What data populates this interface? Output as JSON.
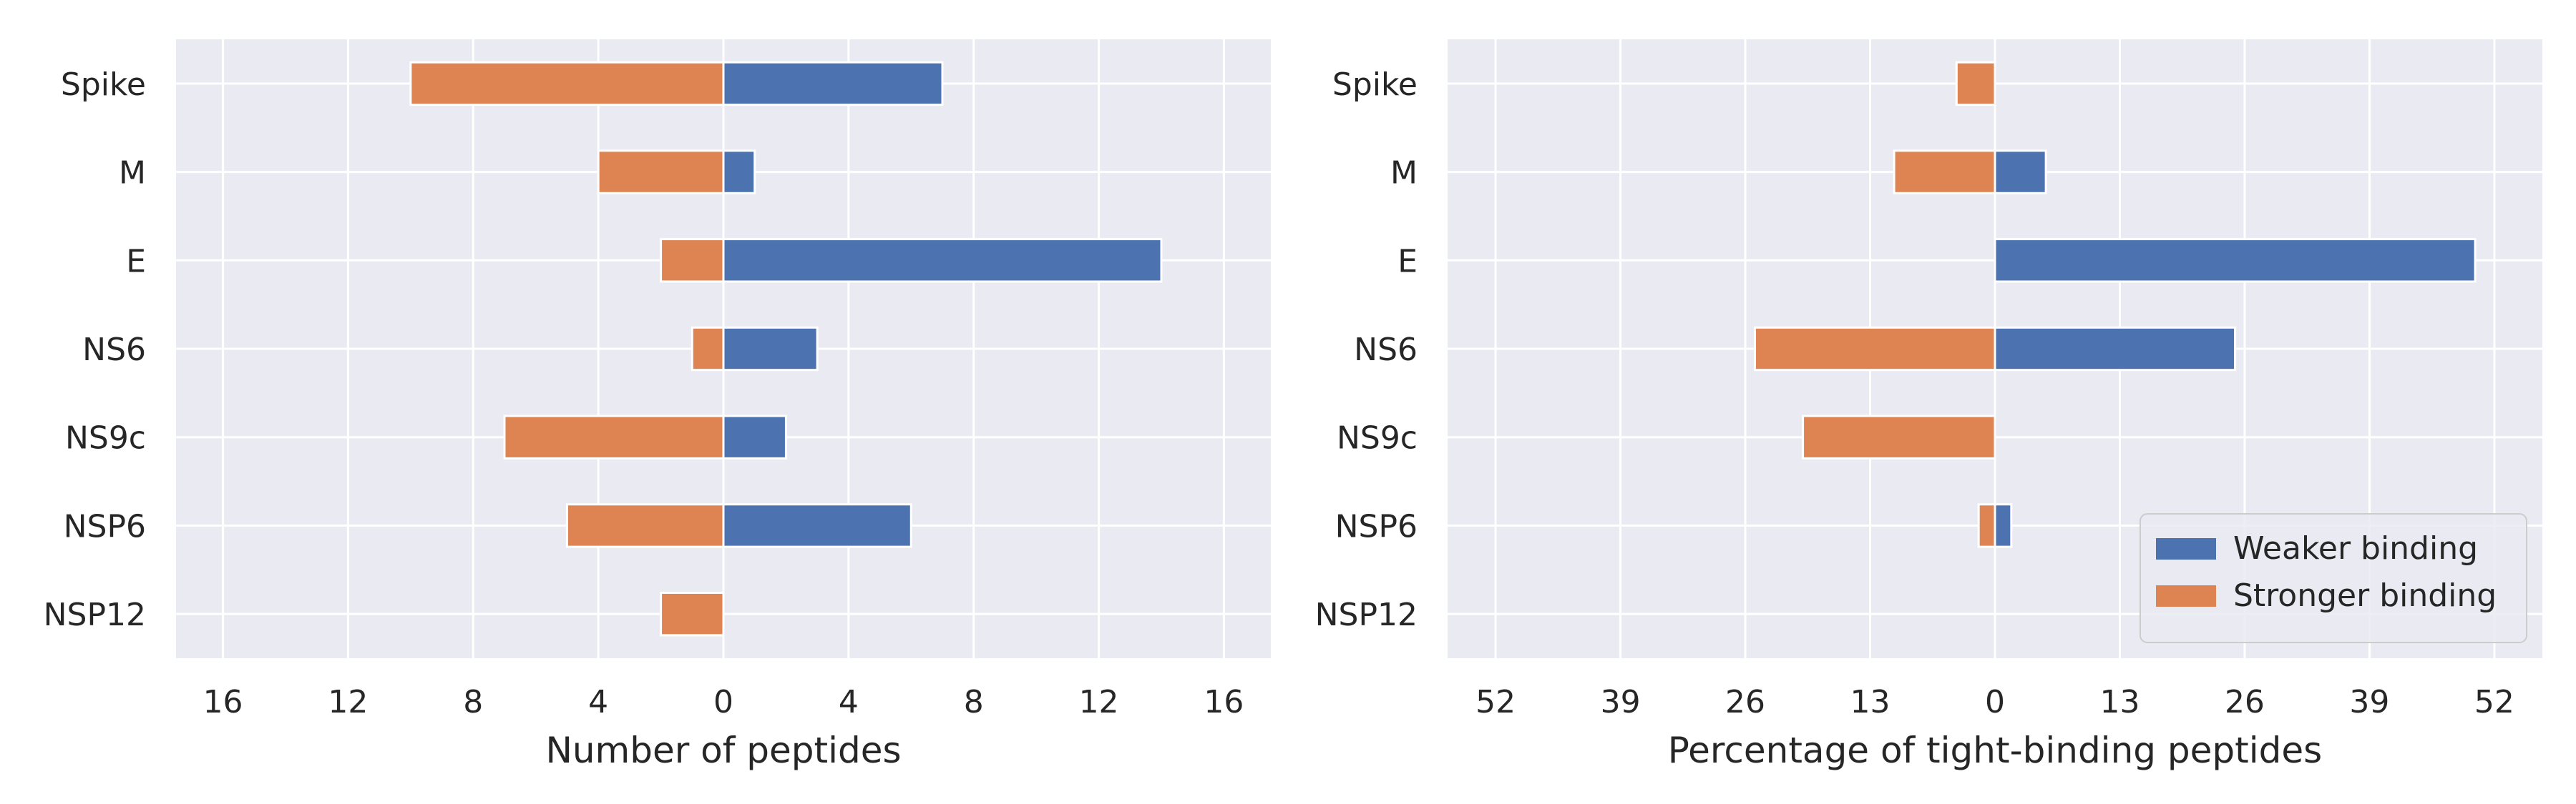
{
  "chart_data": [
    {
      "type": "bar",
      "orientation": "horizontal",
      "diverging": true,
      "categories": [
        "Spike",
        "M",
        "E",
        "NS6",
        "NS9c",
        "NSP6",
        "NSP12"
      ],
      "series": [
        {
          "name": "Weaker binding",
          "values": [
            7,
            1,
            14,
            3,
            2,
            6,
            0
          ]
        },
        {
          "name": "Stronger binding",
          "values": [
            10,
            4,
            2,
            1,
            7,
            5,
            2
          ]
        }
      ],
      "xlabel": "Number of peptides",
      "ylabel": "",
      "xlim": [
        -17.5,
        17.5
      ],
      "xticks": [
        -16,
        -12,
        -8,
        -4,
        0,
        4,
        8,
        12,
        16
      ],
      "xtick_labels": [
        "16",
        "12",
        "8",
        "4",
        "0",
        "4",
        "8",
        "12",
        "16"
      ],
      "grid": true,
      "legend": "none"
    },
    {
      "type": "bar",
      "orientation": "horizontal",
      "diverging": true,
      "categories": [
        "Spike",
        "M",
        "E",
        "NS6",
        "NS9c",
        "NSP6",
        "NSP12"
      ],
      "series": [
        {
          "name": "Weaker binding",
          "values": [
            0,
            5.3,
            50,
            25,
            0,
            1.7,
            0
          ]
        },
        {
          "name": "Stronger binding",
          "values": [
            4,
            10.5,
            0,
            25,
            20,
            1.7,
            0
          ]
        }
      ],
      "xlabel": "Percentage of tight-binding peptides",
      "ylabel": "",
      "xlim": [
        -57,
        57
      ],
      "xticks": [
        -52,
        -39,
        -26,
        -13,
        0,
        13,
        26,
        39,
        52
      ],
      "xtick_labels": [
        "52",
        "39",
        "26",
        "13",
        "0",
        "13",
        "26",
        "39",
        "52"
      ],
      "grid": true,
      "legend": "lower-right"
    }
  ],
  "colors": {
    "weaker": "#4c72b0",
    "stronger": "#dd8452",
    "background": "#eaeaf2",
    "grid": "#ffffff"
  }
}
